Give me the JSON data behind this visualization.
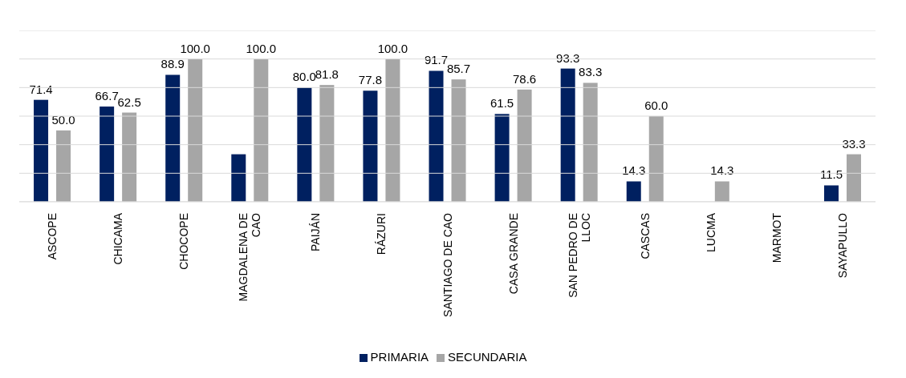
{
  "chart_data": {
    "type": "bar",
    "categories": [
      "ASCOPE",
      "CHICAMA",
      "CHOCOPE",
      "MAGDALENA DE CAO",
      "PAIJÁN",
      "RÁZURI",
      "SANTIAGO DE CAO",
      "CASA GRANDE",
      "SAN PEDRO DE LLOC",
      "CASCAS",
      "LUCMA",
      "MARMOT",
      "SAYAPULLO"
    ],
    "series": [
      {
        "name": "PRIMARIA",
        "color": "#002060",
        "values": [
          71.4,
          66.7,
          88.9,
          33.3,
          80.0,
          77.8,
          91.7,
          61.5,
          93.3,
          14.3,
          null,
          null,
          11.5
        ],
        "value_labels": [
          "71.4",
          "66.7",
          "88.9",
          null,
          "80.0",
          "77.8",
          "91.7",
          "61.5",
          "93.3",
          "14.3",
          null,
          null,
          "11.5"
        ]
      },
      {
        "name": "SECUNDARIA",
        "color": "#a6a6a6",
        "values": [
          50.0,
          62.5,
          100.0,
          100.0,
          81.8,
          100.0,
          85.7,
          78.6,
          83.3,
          60.0,
          14.3,
          null,
          33.3
        ],
        "value_labels": [
          "50.0",
          "62.5",
          "100.0",
          "100.0",
          "81.8",
          "100.0",
          "85.7",
          "78.6",
          "83.3",
          "60.0",
          "14.3",
          null,
          "33.3"
        ]
      }
    ],
    "ylim": [
      0,
      120
    ],
    "yticks": [
      {
        "value": 0,
        "label": null
      },
      {
        "value": 20,
        "label": null
      },
      {
        "value": 40,
        "label": null
      },
      {
        "value": 60,
        "label": null
      },
      {
        "value": 80,
        "label": null
      },
      {
        "value": 100,
        "label": null
      },
      {
        "value": 120,
        "label": null
      }
    ],
    "tick_labels": "x",
    "grid": "y",
    "legend": "bottom"
  }
}
